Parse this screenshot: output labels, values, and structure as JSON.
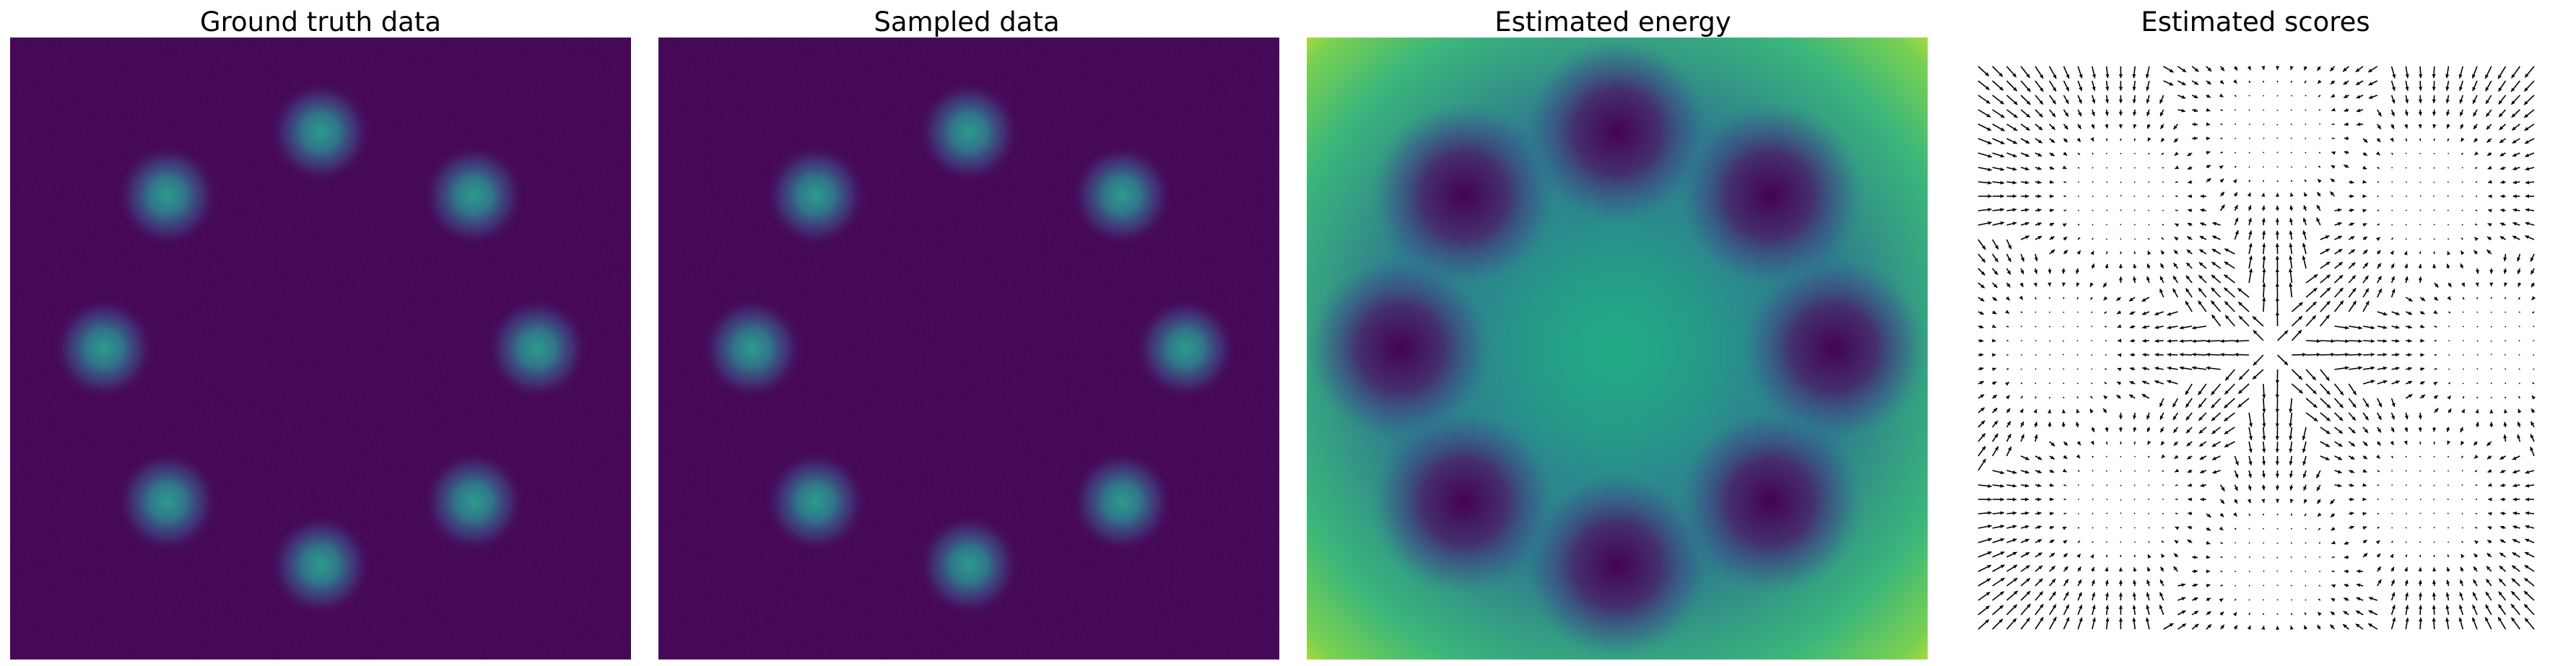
{
  "figure": {
    "titles": [
      "Ground truth data",
      "Sampled data",
      "Estimated energy",
      "Estimated scores"
    ]
  },
  "chart_data": [
    {
      "type": "heatmap",
      "title": "Ground truth data",
      "colormap": "viridis",
      "axes": "off",
      "modes": 8,
      "arrangement": "ring",
      "mode_angles_deg": [
        0,
        45,
        90,
        135,
        180,
        225,
        270,
        315
      ]
    },
    {
      "type": "heatmap",
      "title": "Sampled data",
      "colormap": "viridis",
      "axes": "off",
      "modes": 8,
      "arrangement": "ring",
      "mode_angles_deg": [
        0,
        45,
        90,
        135,
        180,
        225,
        270,
        315
      ]
    },
    {
      "type": "heatmap",
      "title": "Estimated energy",
      "colormap": "viridis",
      "axes": "off",
      "minima": 8,
      "arrangement": "ring",
      "mode_angles_deg": [
        0,
        45,
        90,
        135,
        180,
        225,
        270,
        315
      ],
      "high_regions": [
        "corners",
        "center"
      ]
    },
    {
      "type": "quiver",
      "title": "Estimated scores",
      "axes": "off",
      "arrow_color": "#000000",
      "grid": [
        40,
        40
      ],
      "sinks": 8,
      "arrangement": "ring",
      "mode_angles_deg": [
        0,
        45,
        90,
        135,
        180,
        225,
        270,
        315
      ]
    }
  ]
}
